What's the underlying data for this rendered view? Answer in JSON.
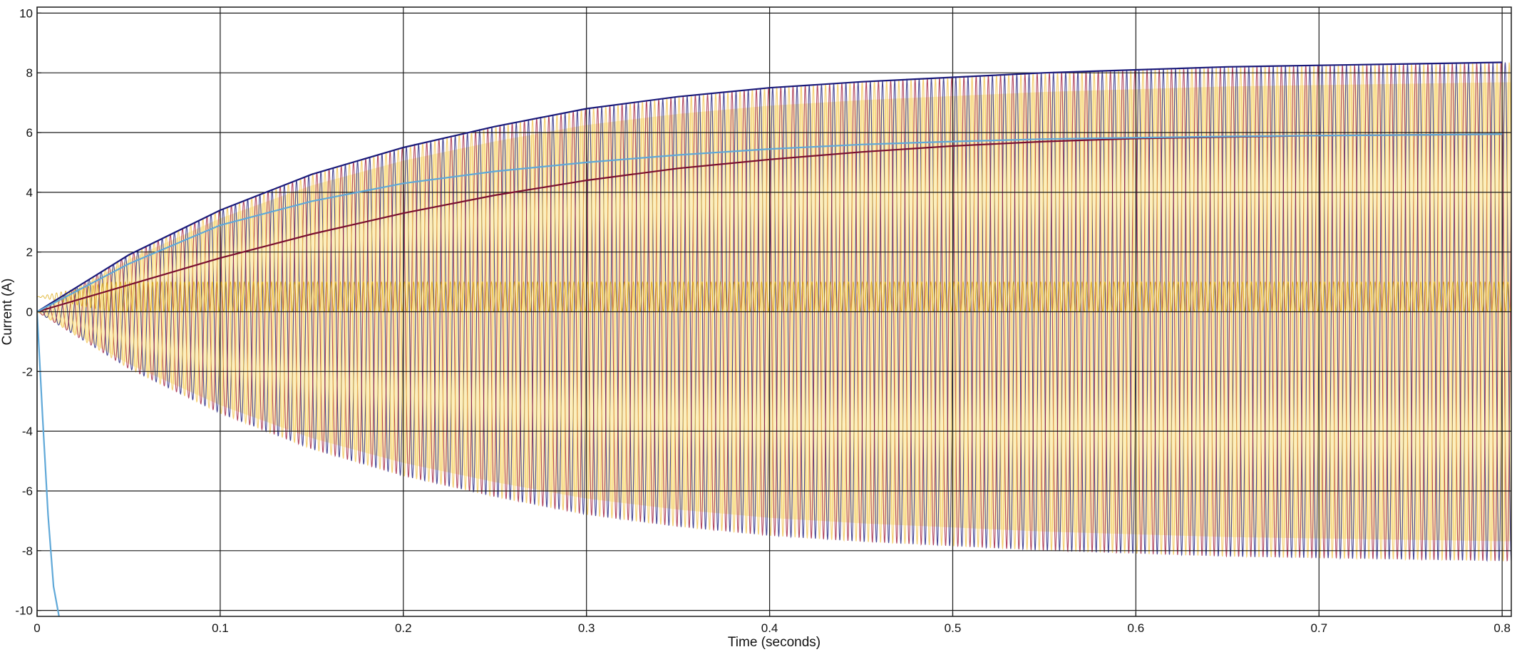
{
  "chart_data": {
    "type": "line",
    "title": "",
    "xlabel": "Time (seconds)",
    "ylabel": "Current (A)",
    "xlim": [
      0,
      0.805
    ],
    "ylim": [
      -10.2,
      10.2
    ],
    "grid": true,
    "legend": "none",
    "x_ticks": [
      0,
      0.1,
      0.2,
      0.3,
      0.4,
      0.5,
      0.6,
      0.7,
      0.8
    ],
    "x_tick_labels": [
      "0",
      "0.1",
      "0.2",
      "0.3",
      "0.4",
      "0.5",
      "0.6",
      "0.7",
      "0.8"
    ],
    "y_ticks": [
      -10,
      -8,
      -6,
      -4,
      -2,
      0,
      2,
      4,
      6,
      8,
      10
    ],
    "y_tick_labels": [
      "-10",
      "-8",
      "-6",
      "-4",
      "-2",
      "0",
      "2",
      "4",
      "6",
      "8",
      "10"
    ],
    "phase_frequency_hz": 150,
    "envelope": {
      "x": [
        0,
        0.05,
        0.1,
        0.15,
        0.2,
        0.25,
        0.3,
        0.35,
        0.4,
        0.45,
        0.5,
        0.55,
        0.6,
        0.65,
        0.7,
        0.75,
        0.8
      ],
      "y": [
        0,
        1.9,
        3.4,
        4.6,
        5.5,
        6.2,
        6.8,
        7.2,
        7.5,
        7.7,
        7.85,
        8.0,
        8.1,
        8.2,
        8.25,
        8.3,
        8.35
      ]
    },
    "series": [
      {
        "color": "#1a1a7a",
        "x": [
          0,
          0.05,
          0.1,
          0.15,
          0.2,
          0.25,
          0.3,
          0.35,
          0.4,
          0.45,
          0.5,
          0.55,
          0.6,
          0.65,
          0.7,
          0.75,
          0.8
        ],
        "y": [
          0,
          1.9,
          3.4,
          4.6,
          5.5,
          6.2,
          6.8,
          7.2,
          7.5,
          7.7,
          7.85,
          8.0,
          8.1,
          8.2,
          8.25,
          8.3,
          8.35
        ]
      },
      {
        "color": "#7a1030",
        "x": [
          0,
          0.05,
          0.1,
          0.15,
          0.2,
          0.25,
          0.3,
          0.35,
          0.4,
          0.45,
          0.5,
          0.55,
          0.6,
          0.65,
          0.7,
          0.75,
          0.8
        ],
        "y": [
          0,
          0.9,
          1.8,
          2.6,
          3.3,
          3.9,
          4.4,
          4.8,
          5.1,
          5.35,
          5.55,
          5.7,
          5.8,
          5.85,
          5.9,
          5.92,
          5.95
        ]
      },
      {
        "color": "#5fa8d8",
        "x": [
          0,
          0.05,
          0.1,
          0.15,
          0.2,
          0.25,
          0.3,
          0.35,
          0.4,
          0.45,
          0.5,
          0.55,
          0.6,
          0.65,
          0.7,
          0.75,
          0.8
        ],
        "y": [
          0,
          1.6,
          2.9,
          3.7,
          4.3,
          4.7,
          5.0,
          5.25,
          5.45,
          5.6,
          5.7,
          5.78,
          5.83,
          5.87,
          5.9,
          5.92,
          5.95
        ]
      },
      {
        "color": "#5fa8d8",
        "x": [
          0,
          0.003,
          0.006,
          0.009,
          0.012
        ],
        "y": [
          0,
          -3.5,
          -6.8,
          -9.2,
          -10.2
        ]
      }
    ],
    "colors": {
      "background": "#ffffff",
      "grid": "#1a1a1a",
      "band_yellow": "#f3c552",
      "band_light": "#fbe9a8",
      "band_red": "#a01a3a",
      "band_blue": "#1a1a7a",
      "center_strip": "#d9a300"
    }
  }
}
